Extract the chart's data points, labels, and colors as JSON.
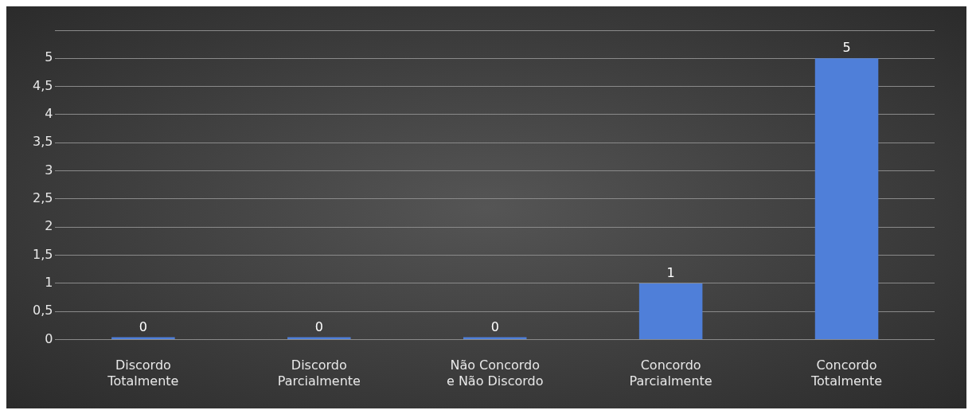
{
  "chart_data": {
    "type": "bar",
    "categories": [
      "Discordo Totalmente",
      "Discordo Parcialmente",
      "Não Concordo e Não Discordo",
      "Concordo Parcialmente",
      "Concordo Totalmente"
    ],
    "values": [
      0,
      0,
      0,
      1,
      5
    ],
    "color": "#4f7fd9",
    "ylim": [
      0,
      5.5
    ],
    "yticks": [
      0,
      {
        "value": 0.5,
        "label": "0,5"
      },
      1,
      {
        "value": 1.5,
        "label": "1,5"
      },
      2,
      {
        "value": 2.5,
        "label": "2,5"
      },
      3,
      {
        "value": 3.5,
        "label": "3,5"
      },
      4,
      {
        "value": 4.5,
        "label": "4,5"
      },
      5,
      {
        "value": 5.5,
        "label": null
      }
    ],
    "grid": "y",
    "data_labels": true,
    "legend": false
  }
}
